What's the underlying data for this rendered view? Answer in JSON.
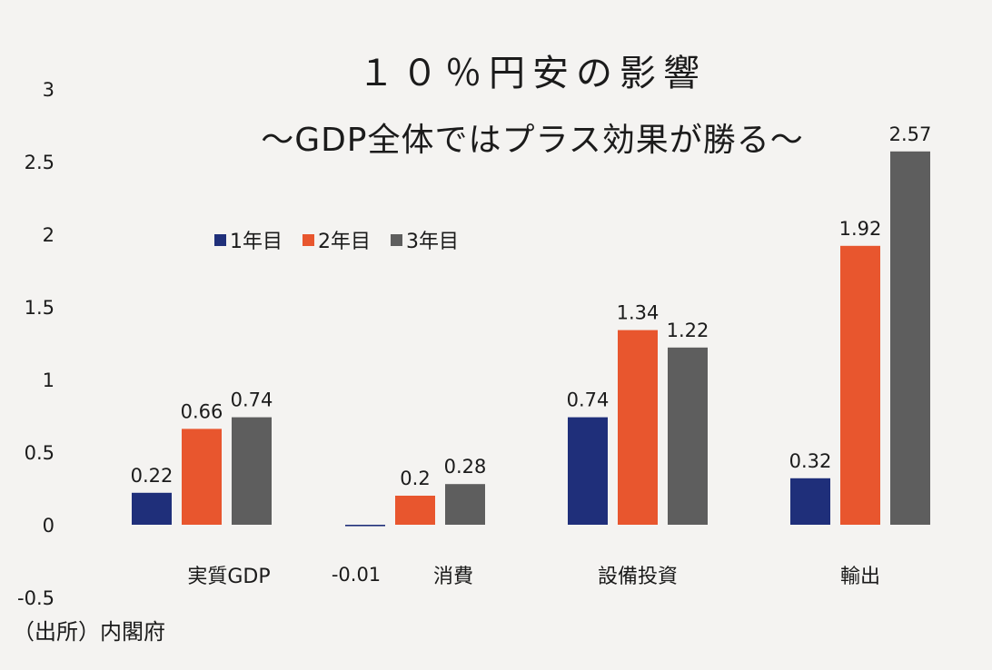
{
  "chart_data": {
    "type": "bar",
    "title": "１０％円安の影響",
    "subtitle": "～GDP全体ではプラス効果が勝る～",
    "categories": [
      "実質GDP",
      "消費",
      "設備投資",
      "輸出"
    ],
    "series": [
      {
        "name": "1年目",
        "values": [
          0.22,
          -0.01,
          0.74,
          0.32
        ],
        "color": "#1f2f7a"
      },
      {
        "name": "2年目",
        "values": [
          0.66,
          0.2,
          1.34,
          1.92
        ],
        "color": "#e8562e"
      },
      {
        "name": "3年目",
        "values": [
          0.74,
          0.28,
          1.22,
          2.57
        ],
        "color": "#5e5e5e"
      }
    ],
    "data_labels": [
      [
        "0.22",
        "0.66",
        "0.74"
      ],
      [
        "-0.01",
        "0.2",
        "0.28"
      ],
      [
        "0.74",
        "1.34",
        "1.22"
      ],
      [
        "0.32",
        "1.92",
        "2.57"
      ]
    ],
    "y_ticks": [
      "3",
      "2.5",
      "2",
      "1.5",
      "1",
      "0.5",
      "0",
      "-0.5"
    ],
    "ylim": [
      -0.5,
      3
    ],
    "xlabel": "",
    "ylabel": "",
    "legend_position": "top-left",
    "grid": false
  },
  "source_note": "（出所）内閣府"
}
